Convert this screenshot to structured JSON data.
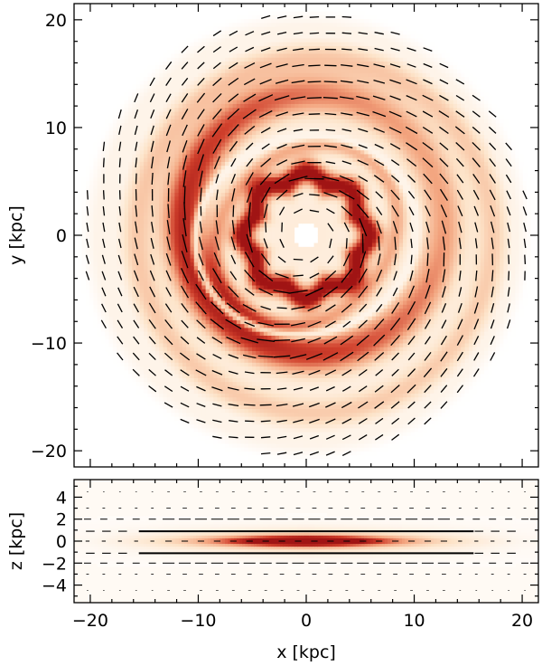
{
  "chart_data": [
    {
      "type": "heatmap",
      "panel": "top",
      "title": "",
      "xlabel": "",
      "ylabel": "y [kpc]",
      "xlim": [
        -21.5,
        21.5
      ],
      "ylim": [
        -21.5,
        21.5
      ],
      "x_ticks": [
        -20,
        -10,
        0,
        10,
        20
      ],
      "y_ticks": [
        -20,
        -10,
        0,
        10,
        20
      ],
      "x_tick_labels_shown": false,
      "y_tick_labels": [
        "−20",
        "−10",
        "0",
        "10",
        "20"
      ],
      "colormap": [
        "#ffffff",
        "#fde3c8",
        "#f3a57f",
        "#d0402c",
        "#a01414"
      ],
      "overlay": "magnetic field vectors (black line segments)",
      "features": {
        "disk_radius_kpc": 21,
        "inner_hole_radius_kpc": 1.2,
        "inner_ring_radius_kpc": 5.5,
        "outer_ring_radius_kpc": 12
      }
    },
    {
      "type": "heatmap",
      "panel": "bottom",
      "title": "",
      "xlabel": "x [kpc]",
      "ylabel": "z [kpc]",
      "xlim": [
        -21.5,
        21.5
      ],
      "ylim": [
        -5.6,
        5.6
      ],
      "x_ticks": [
        -20,
        -10,
        0,
        10,
        20
      ],
      "x_tick_labels": [
        "−20",
        "−10",
        "0",
        "10",
        "20"
      ],
      "y_ticks": [
        -4,
        -2,
        0,
        2,
        4
      ],
      "y_tick_labels": [
        "−4",
        "−2",
        "0",
        "2",
        "4"
      ],
      "colormap": [
        "#ffffff",
        "#fde3c8",
        "#f3a57f",
        "#d0402c",
        "#a01414"
      ],
      "overlay": "magnetic field vectors (black line segments)"
    }
  ]
}
